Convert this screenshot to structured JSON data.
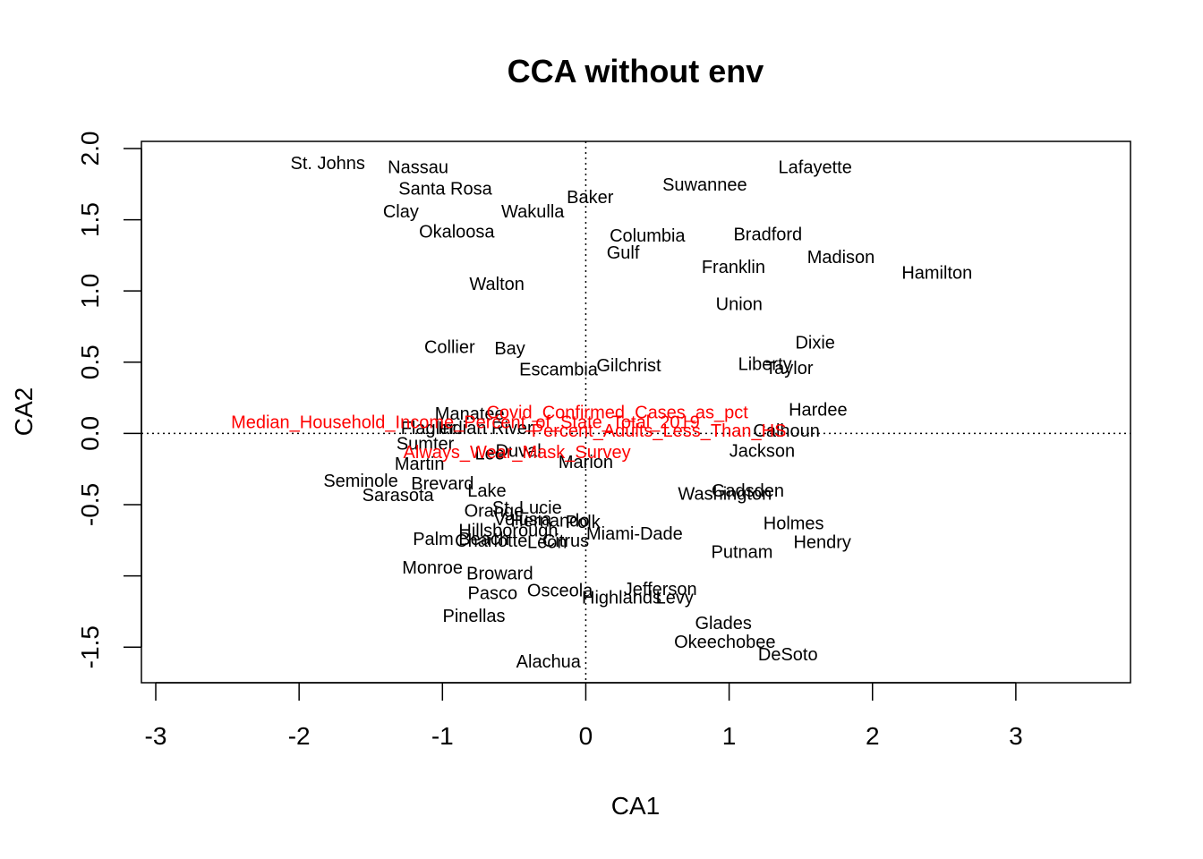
{
  "chart_data": {
    "type": "scatter",
    "title": "CCA without env",
    "xlabel": "CA1",
    "ylabel": "CA2",
    "xlim": [
      -3.1,
      3.8
    ],
    "ylim": [
      -1.75,
      2.05
    ],
    "x_ticks": [
      "-3",
      "-2",
      "-1",
      "0",
      "1",
      "2",
      "3"
    ],
    "x_tick_values": [
      -3,
      -2,
      -1,
      0,
      1,
      2,
      3
    ],
    "y_ticks": [
      "-1.5",
      "-0.5",
      "0.0",
      "0.5",
      "1.0",
      "1.5",
      "2.0"
    ],
    "y_tick_values": [
      -1.5,
      -0.5,
      0.0,
      0.5,
      1.0,
      1.5,
      2.0
    ],
    "reference_lines": {
      "x": 0,
      "y": 0,
      "style": "dotted"
    },
    "species_color": "#ff0000",
    "site_color": "#000000",
    "sites": [
      {
        "label": "St. Johns",
        "x": -1.8,
        "y": 1.9
      },
      {
        "label": "Nassau",
        "x": -1.17,
        "y": 1.87
      },
      {
        "label": "Santa Rosa",
        "x": -0.98,
        "y": 1.72
      },
      {
        "label": "Clay",
        "x": -1.29,
        "y": 1.56
      },
      {
        "label": "Okaloosa",
        "x": -0.9,
        "y": 1.42
      },
      {
        "label": "Wakulla",
        "x": -0.37,
        "y": 1.56
      },
      {
        "label": "Baker",
        "x": 0.03,
        "y": 1.66
      },
      {
        "label": "Suwannee",
        "x": 0.83,
        "y": 1.75
      },
      {
        "label": "Lafayette",
        "x": 1.6,
        "y": 1.87
      },
      {
        "label": "Columbia",
        "x": 0.43,
        "y": 1.39
      },
      {
        "label": "Gulf",
        "x": 0.26,
        "y": 1.27
      },
      {
        "label": "Bradford",
        "x": 1.27,
        "y": 1.4
      },
      {
        "label": "Madison",
        "x": 1.78,
        "y": 1.24
      },
      {
        "label": "Franklin",
        "x": 1.03,
        "y": 1.17
      },
      {
        "label": "Hamilton",
        "x": 2.45,
        "y": 1.13
      },
      {
        "label": "Walton",
        "x": -0.62,
        "y": 1.05
      },
      {
        "label": "Union",
        "x": 1.07,
        "y": 0.91
      },
      {
        "label": "Collier",
        "x": -0.95,
        "y": 0.61
      },
      {
        "label": "Bay",
        "x": -0.53,
        "y": 0.6
      },
      {
        "label": "Escambia",
        "x": -0.19,
        "y": 0.45
      },
      {
        "label": "Gilchrist",
        "x": 0.3,
        "y": 0.48
      },
      {
        "label": "Liberty",
        "x": 1.25,
        "y": 0.49
      },
      {
        "label": "Dixie",
        "x": 1.6,
        "y": 0.64
      },
      {
        "label": "Taylor",
        "x": 1.42,
        "y": 0.46
      },
      {
        "label": "Hardee",
        "x": 1.62,
        "y": 0.17
      },
      {
        "label": "Manatee",
        "x": -0.81,
        "y": 0.14
      },
      {
        "label": "Flagler",
        "x": -1.1,
        "y": 0.04
      },
      {
        "label": "Indian River",
        "x": -0.7,
        "y": 0.04
      },
      {
        "label": "Calhoun",
        "x": 1.4,
        "y": 0.02
      },
      {
        "label": "Sumter",
        "x": -1.12,
        "y": -0.07
      },
      {
        "label": "Lee",
        "x": -0.67,
        "y": -0.14
      },
      {
        "label": "Duval",
        "x": -0.47,
        "y": -0.12
      },
      {
        "label": "Marion",
        "x": 0.0,
        "y": -0.2
      },
      {
        "label": "Jackson",
        "x": 1.23,
        "y": -0.12
      },
      {
        "label": "Martin",
        "x": -1.16,
        "y": -0.21
      },
      {
        "label": "Seminole",
        "x": -1.57,
        "y": -0.33
      },
      {
        "label": "Brevard",
        "x": -1.0,
        "y": -0.35
      },
      {
        "label": "Sarasota",
        "x": -1.31,
        "y": -0.43
      },
      {
        "label": "Lake",
        "x": -0.69,
        "y": -0.4
      },
      {
        "label": "Gadsden",
        "x": 1.13,
        "y": -0.4
      },
      {
        "label": "Washington",
        "x": 0.97,
        "y": -0.42
      },
      {
        "label": "St. Lucie",
        "x": -0.41,
        "y": -0.52
      },
      {
        "label": "Orange",
        "x": -0.64,
        "y": -0.54
      },
      {
        "label": "Volusia",
        "x": -0.44,
        "y": -0.6
      },
      {
        "label": "Hernando",
        "x": -0.25,
        "y": -0.61
      },
      {
        "label": "Polk",
        "x": -0.02,
        "y": -0.62
      },
      {
        "label": "Holmes",
        "x": 1.45,
        "y": -0.63
      },
      {
        "label": "Hillsborough",
        "x": -0.54,
        "y": -0.68
      },
      {
        "label": "Miami-Dade",
        "x": 0.34,
        "y": -0.7
      },
      {
        "label": "Palm Beach",
        "x": -0.87,
        "y": -0.74
      },
      {
        "label": "Charlotte",
        "x": -0.66,
        "y": -0.75
      },
      {
        "label": "Leon",
        "x": -0.27,
        "y": -0.76
      },
      {
        "label": "Citrus",
        "x": -0.14,
        "y": -0.75
      },
      {
        "label": "Hendry",
        "x": 1.65,
        "y": -0.76
      },
      {
        "label": "Putnam",
        "x": 1.09,
        "y": -0.83
      },
      {
        "label": "Monroe",
        "x": -1.07,
        "y": -0.94
      },
      {
        "label": "Broward",
        "x": -0.6,
        "y": -0.98
      },
      {
        "label": "Pasco",
        "x": -0.65,
        "y": -1.12
      },
      {
        "label": "Osceola",
        "x": -0.18,
        "y": -1.1
      },
      {
        "label": "Jefferson",
        "x": 0.52,
        "y": -1.09
      },
      {
        "label": "Highlands",
        "x": 0.25,
        "y": -1.15
      },
      {
        "label": "Levy",
        "x": 0.62,
        "y": -1.15
      },
      {
        "label": "Pinellas",
        "x": -0.78,
        "y": -1.28
      },
      {
        "label": "Glades",
        "x": 0.96,
        "y": -1.33
      },
      {
        "label": "Okeechobee",
        "x": 0.97,
        "y": -1.46
      },
      {
        "label": "DeSoto",
        "x": 1.41,
        "y": -1.55
      },
      {
        "label": "Alachua",
        "x": -0.26,
        "y": -1.6
      }
    ],
    "species": [
      {
        "label": "Covid_Confirmed_Cases_as_pct",
        "x": 0.22,
        "y": 0.15
      },
      {
        "label": "Median_Household_Income_Percent_of_State_Total_2019",
        "x": -0.84,
        "y": 0.08
      },
      {
        "label": "Percent_Adults_Less_Than_HS",
        "x": 0.51,
        "y": 0.02
      },
      {
        "label": "Always_Wear_Mask_Survey",
        "x": -0.48,
        "y": -0.13
      }
    ]
  }
}
